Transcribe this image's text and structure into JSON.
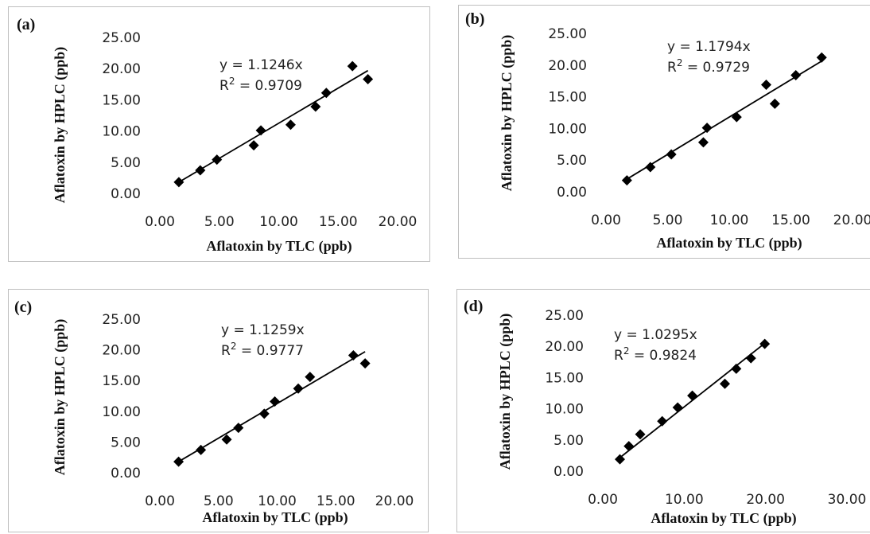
{
  "chart_data": [
    {
      "type": "scatter",
      "panel_label": "(a)",
      "xlabel": "Aflatoxin by TLC (ppb)",
      "ylabel": "Aflatoxin by HPLC (ppb)",
      "xlim": [
        0,
        20
      ],
      "ylim": [
        0,
        25
      ],
      "xticks": [
        "0.00",
        "5.00",
        "10.00",
        "15.00",
        "20.00"
      ],
      "yticks": [
        "0.00",
        "5.00",
        "10.00",
        "15.00",
        "20.00",
        "25.00"
      ],
      "equation": "y = 1.1246x",
      "r2_label": "R",
      "r2_value": "= 0.9709",
      "slope": 1.1246,
      "trend_x": [
        1.5,
        17.5
      ],
      "x": [
        1.6,
        3.4,
        4.8,
        7.9,
        8.5,
        11.0,
        13.1,
        14.0,
        16.2,
        17.5
      ],
      "y": [
        1.8,
        3.7,
        5.4,
        7.7,
        10.1,
        11.0,
        13.9,
        16.1,
        20.4,
        18.3
      ]
    },
    {
      "type": "scatter",
      "panel_label": "(b)",
      "xlabel": "Aflatoxin by TLC (ppb)",
      "ylabel": "Aflatoxin by HPLC (ppb)",
      "xlim": [
        0,
        20
      ],
      "ylim": [
        0,
        25
      ],
      "xticks": [
        "0.00",
        "5.00",
        "10.00",
        "15.00",
        "20.00"
      ],
      "yticks": [
        "0.00",
        "5.00",
        "10.00",
        "15.00",
        "20.00",
        "25.00"
      ],
      "equation": "y = 1.1794x",
      "r2_label": "R",
      "r2_value": "= 0.9729",
      "slope": 1.1794,
      "trend_x": [
        1.5,
        17.5
      ],
      "x": [
        1.7,
        3.6,
        5.3,
        7.9,
        8.2,
        10.6,
        13.0,
        13.7,
        15.4,
        17.5
      ],
      "y": [
        1.8,
        3.9,
        5.9,
        7.8,
        10.1,
        11.8,
        16.9,
        13.9,
        18.4,
        21.2
      ]
    },
    {
      "type": "scatter",
      "panel_label": "(c)",
      "xlabel": "Aflatoxin by TLC (ppb)",
      "ylabel": "Aflatoxin by HPLC (ppb)",
      "xlim": [
        0,
        20
      ],
      "ylim": [
        0,
        25
      ],
      "xticks": [
        "0.00",
        "5.00",
        "10.00",
        "15.00",
        "20.00"
      ],
      "yticks": [
        "0.00",
        "5.00",
        "10.00",
        "15.00",
        "20.00",
        "25.00"
      ],
      "equation": "y = 1.1259x",
      "r2_label": "R",
      "r2_value": "= 0.9777",
      "slope": 1.1259,
      "trend_x": [
        1.5,
        17.5
      ],
      "x": [
        1.6,
        3.5,
        5.7,
        6.7,
        8.9,
        9.8,
        11.8,
        12.8,
        16.5,
        17.5
      ],
      "y": [
        1.8,
        3.7,
        5.4,
        7.3,
        9.6,
        11.6,
        13.7,
        15.6,
        19.1,
        17.8
      ]
    },
    {
      "type": "scatter",
      "panel_label": "(d)",
      "xlabel": "Aflatoxin by TLC (ppb)",
      "ylabel": "Aflatoxin by HPLC (ppb)",
      "xlim": [
        0,
        30
      ],
      "ylim": [
        0,
        25
      ],
      "xticks": [
        "0.00",
        "10.00",
        "20.00",
        "30.00"
      ],
      "yticks": [
        "0.00",
        "5.00",
        "10.00",
        "15.00",
        "20.00",
        "25.00"
      ],
      "equation": "y = 1.0295x",
      "r2_label": "R",
      "r2_value": "= 0.9824",
      "slope": 1.0295,
      "trend_x": [
        2.0,
        20.0
      ],
      "x": [
        2.1,
        3.2,
        4.6,
        7.3,
        9.2,
        11.0,
        15.0,
        16.4,
        18.2,
        19.9
      ],
      "y": [
        1.9,
        4.0,
        5.9,
        8.0,
        10.2,
        12.1,
        14.0,
        16.4,
        18.1,
        20.4
      ]
    }
  ]
}
